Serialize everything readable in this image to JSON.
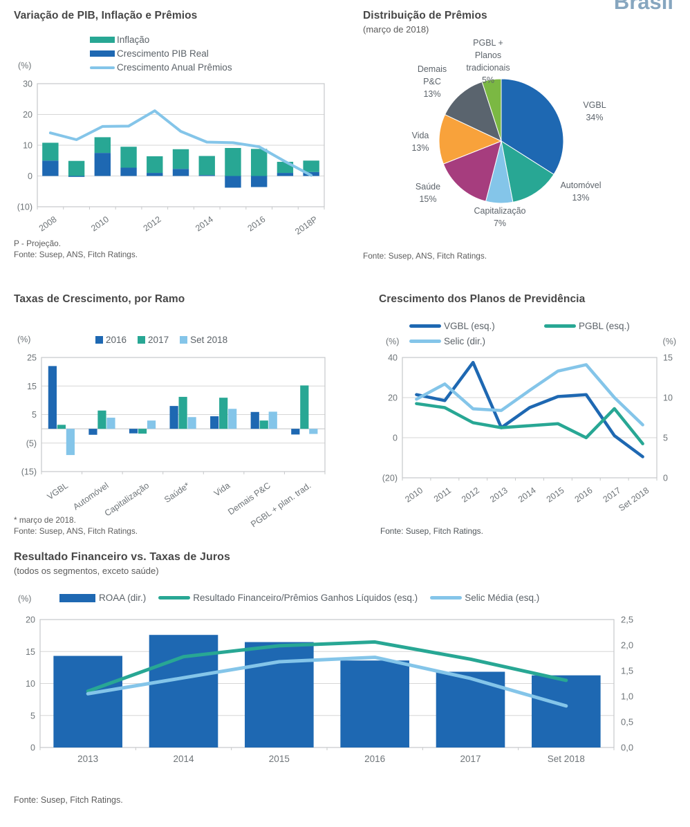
{
  "page": {
    "brand": "Brasil",
    "footer_source": "Fonte: Susep, Fitch Ratings."
  },
  "colors": {
    "dark_blue": "#1e68b2",
    "teal": "#28a794",
    "light_blue": "#84c5e9",
    "magenta": "#a63d7e",
    "orange": "#f8a23b",
    "slate": "#5a646e",
    "green": "#7bb843",
    "grid": "#d6d6d6",
    "plot_border": "#c6c8ca",
    "zero_line": "#bfc3c5",
    "axis_text": "#6e7478",
    "title_text": "#474747"
  },
  "chart_data": [
    {
      "id": "pib-inflacao-premios",
      "type": "bar+line",
      "title": "Variação de PIB, Inflação e Prêmios",
      "unit_label": "(%)",
      "legend": [
        {
          "label": "Inflação",
          "color_key": "teal",
          "swatch": "bar"
        },
        {
          "label": "Crescimento PIB Real",
          "color_key": "dark_blue",
          "swatch": "bar"
        },
        {
          "label": "Crescimento Anual Prêmios",
          "color_key": "light_blue",
          "swatch": "line"
        }
      ],
      "categories": [
        "2008",
        "2009",
        "2010",
        "2011",
        "2012",
        "2013",
        "2014",
        "2015",
        "2016",
        "2017",
        "2018P"
      ],
      "x_tick_labels": [
        "2008",
        "2010",
        "2012",
        "2014",
        "2016",
        "2018P"
      ],
      "series": [
        {
          "name": "Crescimento PIB Real",
          "type": "bar",
          "color_key": "dark_blue",
          "values": [
            5.0,
            -0.3,
            7.5,
            2.7,
            1.0,
            2.3,
            0.3,
            -3.8,
            -3.6,
            1.0,
            1.3
          ]
        },
        {
          "name": "Inflação",
          "type": "bar-stacked",
          "color_key": "teal",
          "values": [
            5.8,
            4.9,
            5.1,
            6.8,
            5.4,
            6.4,
            6.2,
            9.1,
            8.8,
            3.6,
            3.7
          ]
        },
        {
          "name": "Crescimento Anual Prêmios",
          "type": "line",
          "color_key": "light_blue",
          "values": [
            14.0,
            11.8,
            16.1,
            16.2,
            21.2,
            14.5,
            11.0,
            10.8,
            9.5,
            4.7,
            0.2
          ]
        }
      ],
      "ylim": [
        -10,
        30
      ],
      "y_ticks": [
        "30",
        "20",
        "10",
        "0",
        "(10)"
      ],
      "footnotes": [
        "P - Projeção.",
        "Fonte: Susep, ANS, Fitch Ratings."
      ]
    },
    {
      "id": "distribuicao-premios",
      "type": "pie",
      "title": "Distribuição de Prêmios",
      "subtitle": "(março de 2018)",
      "slices": [
        {
          "label": "VGBL",
          "pct": 34,
          "color_key": "dark_blue",
          "label_lines": [
            "VGBL",
            "34%"
          ]
        },
        {
          "label": "Automóvel",
          "pct": 13,
          "color_key": "teal",
          "label_lines": [
            "Automóvel",
            "13%"
          ]
        },
        {
          "label": "Capitalização",
          "pct": 7,
          "color_key": "light_blue",
          "label_lines": [
            "Capitalização",
            "7%"
          ]
        },
        {
          "label": "Saúde",
          "pct": 15,
          "color_key": "magenta",
          "label_lines": [
            "Saúde",
            "15%"
          ]
        },
        {
          "label": "Vida",
          "pct": 13,
          "color_key": "orange",
          "label_lines": [
            "Vida",
            "13%"
          ]
        },
        {
          "label": "Demais P&C",
          "pct": 13,
          "color_key": "slate",
          "label_lines": [
            "Demais",
            "P&C",
            "13%"
          ]
        },
        {
          "label": "PGBL + Planos tradicionais",
          "pct": 5,
          "color_key": "green",
          "label_lines": [
            "PGBL +",
            "Planos",
            "tradicionais",
            "5%"
          ]
        }
      ],
      "footnotes": [
        "Fonte: Susep, ANS, Fitch Ratings."
      ]
    },
    {
      "id": "taxas-crescimento-ramo",
      "type": "grouped-bar",
      "title": "Taxas de Crescimento, por Ramo",
      "unit_label": "(%)",
      "legend": [
        {
          "label": "2016",
          "color_key": "dark_blue",
          "swatch": "square"
        },
        {
          "label": "2017",
          "color_key": "teal",
          "swatch": "square"
        },
        {
          "label": "Set 2018",
          "color_key": "light_blue",
          "swatch": "square"
        }
      ],
      "categories": [
        "VGBL",
        "Automóvel",
        "Capitalização",
        "Saúde*",
        "Vida",
        "Demais P&C",
        "PGBL + plan. trad."
      ],
      "series": [
        {
          "name": "2016",
          "color_key": "dark_blue",
          "values": [
            22,
            -2.1,
            -1.6,
            8,
            4.4,
            5.9,
            -2
          ]
        },
        {
          "name": "2017",
          "color_key": "teal",
          "values": [
            1.4,
            6.4,
            -1.7,
            11.2,
            10.9,
            2.9,
            15.2
          ]
        },
        {
          "name": "Set 2018",
          "color_key": "light_blue",
          "values": [
            -9.2,
            3.9,
            2.9,
            4.1,
            7,
            6,
            -1.8
          ]
        }
      ],
      "ylim": [
        -15,
        25
      ],
      "y_ticks": [
        "25",
        "15",
        "5",
        "(5)",
        "(15)"
      ],
      "footnotes": [
        "* março de 2018.",
        "Fonte: Susep, ANS, Fitch Ratings."
      ]
    },
    {
      "id": "crescimento-previdencia",
      "type": "multi-line-dual-axis",
      "title": "Crescimento dos Planos de Previdência",
      "unit_label_left": "(%)",
      "unit_label_right": "(%)",
      "legend": [
        {
          "label": "VGBL (esq.)",
          "color_key": "dark_blue",
          "swatch": "lline"
        },
        {
          "label": "PGBL (esq.)",
          "color_key": "teal",
          "swatch": "lline"
        },
        {
          "label": "Selic (dir.)",
          "color_key": "light_blue",
          "swatch": "lline"
        }
      ],
      "categories": [
        "2010",
        "2011",
        "2012",
        "2013",
        "2014",
        "2015",
        "2016",
        "2017",
        "Set 2018"
      ],
      "series": [
        {
          "name": "VGBL (esq.)",
          "axis": "left",
          "color_key": "dark_blue",
          "values": [
            21.5,
            18.5,
            37.5,
            5,
            15,
            20.5,
            21.5,
            1,
            -9.5
          ]
        },
        {
          "name": "PGBL (esq.)",
          "axis": "left",
          "color_key": "teal",
          "values": [
            17,
            15,
            7.5,
            5,
            6,
            7,
            0,
            14.5,
            -3
          ]
        },
        {
          "name": "Selic (dir.)",
          "axis": "right",
          "color_key": "light_blue",
          "values": [
            9.8,
            11.7,
            8.6,
            8.4,
            10.9,
            13.3,
            14.1,
            10.0,
            6.6
          ]
        }
      ],
      "ylim_left": [
        -20,
        40
      ],
      "y_ticks_left": [
        "40",
        "20",
        "0",
        "(20)"
      ],
      "ylim_right": [
        0,
        15
      ],
      "y_ticks_right": [
        "15",
        "10",
        "5",
        "0"
      ],
      "footnotes": [
        "Fonte: Susep, Fitch Ratings."
      ]
    },
    {
      "id": "resultado-financeiro-juros",
      "type": "bar+lines-dual-axis",
      "title": "Resultado Financeiro  vs. Taxas de Juros",
      "subtitle": "(todos os segmentos, exceto  saúde)",
      "unit_label_left": "(%)",
      "legend": [
        {
          "label": "ROAA (dir.)",
          "color_key": "dark_blue",
          "swatch": "bigbar"
        },
        {
          "label": "Resultado Financeiro/Prêmios Ganhos Líquidos (esq.)",
          "color_key": "teal",
          "swatch": "lline"
        },
        {
          "label": "Selic Média (esq.)",
          "color_key": "light_blue",
          "swatch": "lline"
        }
      ],
      "categories": [
        "2013",
        "2014",
        "2015",
        "2016",
        "2017",
        "Set 2018"
      ],
      "series": [
        {
          "name": "ROAA (dir.)",
          "type": "bar",
          "axis": "right",
          "color_key": "dark_blue",
          "values": [
            1.79,
            2.2,
            2.06,
            1.7,
            1.48,
            1.41
          ]
        },
        {
          "name": "Resultado Financeiro/Prêmios Ganhos Líquidos (esq.)",
          "type": "line",
          "axis": "left",
          "color_key": "teal",
          "values": [
            8.8,
            14.2,
            15.9,
            16.5,
            13.8,
            10.5
          ]
        },
        {
          "name": "Selic Média (esq.)",
          "type": "line",
          "axis": "left",
          "color_key": "light_blue",
          "values": [
            8.4,
            10.9,
            13.4,
            14.1,
            10.8,
            6.5
          ]
        }
      ],
      "ylim_left": [
        0,
        20
      ],
      "y_ticks_left": [
        "20",
        "15",
        "10",
        "5",
        "0"
      ],
      "ylim_right": [
        0,
        2.5
      ],
      "y_ticks_right": [
        "2,5",
        "2,0",
        "1,5",
        "1,0",
        "0,5",
        "0,0"
      ],
      "footnotes": [
        "Fonte: Susep, Fitch Ratings."
      ]
    }
  ]
}
